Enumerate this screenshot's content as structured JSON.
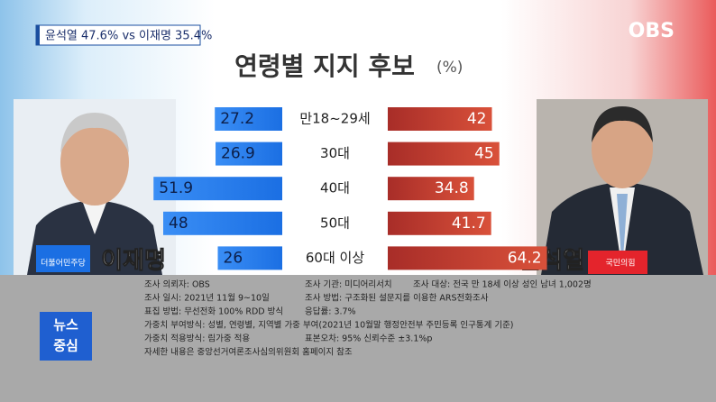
{
  "header": {
    "summary": "윤석열 47.6% vs 이재명 35.4%",
    "logo": "OBS"
  },
  "chart_data": {
    "type": "diverging-bar",
    "title": "연령별 지지 후보",
    "unit": "(%)",
    "categories": [
      "만18~29세",
      "30대",
      "40대",
      "50대",
      "60대 이상"
    ],
    "series": [
      {
        "name": "이재명",
        "party": "더불어민주당",
        "color": "#1b6fe3",
        "values": [
          27.2,
          26.9,
          51.9,
          48.0,
          26.0
        ]
      },
      {
        "name": "윤석열",
        "party": "국민의힘",
        "color": "#b8352b",
        "values": [
          42.0,
          45.0,
          34.8,
          41.7,
          64.2
        ]
      }
    ]
  },
  "footer": {
    "items": [
      "조사 의뢰자: OBS",
      "조사 기관: 미디어리서치",
      "조사 대상: 전국 만 18세 이상 성인 남녀 1,002명",
      "조사 일시: 2021년 11월 9~10일",
      "조사 방법: 구조화된 설문지를 이용한 ARS전화조사",
      "표집 방법: 무선전화 100% RDD 방식",
      "응답률: 3.7%",
      "가중치 부여방식:  성별, 연령별, 지역별 가중 부여(2021년 10월말 행정안전부 주민등록 인구통계 기준)",
      "가중치 적용방식: 림가중 적용",
      "표본오차: 95% 신뢰수준 ±3.1%p",
      "자세한 내용은 중앙선거여론조사심의위원회 홈페이지 참조"
    ]
  },
  "badge": [
    "뉴스",
    "중심"
  ]
}
